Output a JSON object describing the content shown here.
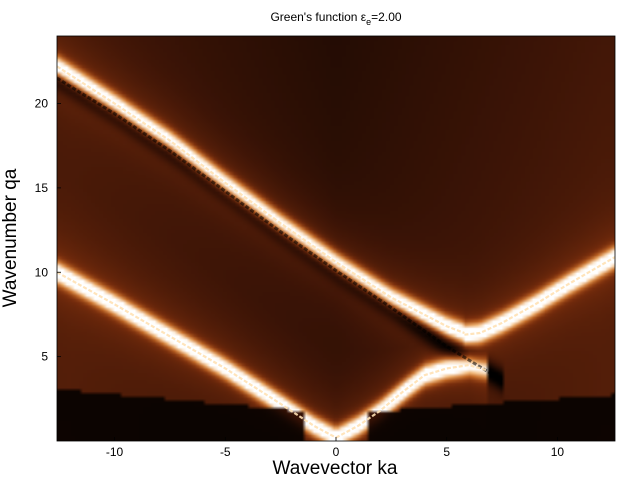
{
  "chart_data": {
    "type": "heatmap",
    "title": "Green's function ε",
    "title_subscript": "e",
    "title_value": "=2.00",
    "xlabel": "Wavevector ka",
    "ylabel": "Wavenumber qa",
    "xlim": [
      -12.6,
      12.6
    ],
    "ylim": [
      0,
      24
    ],
    "xticks": [
      -10,
      -5,
      0,
      5,
      10
    ],
    "xtick_labels": [
      "-10",
      "-5",
      "0",
      "5",
      "10"
    ],
    "yticks": [
      5,
      10,
      15,
      20
    ],
    "ytick_labels": [
      "5",
      "10",
      "15",
      "20"
    ],
    "grid": false,
    "legend": "none",
    "colormap": [
      "#000000",
      "#3c1406",
      "#7a2e0d",
      "#c56a26",
      "#f2b878",
      "#ffffff"
    ],
    "bright_curves": [
      {
        "x": [
          -12.6,
          -10,
          -7.5,
          -5,
          -2.5,
          -1,
          0
        ],
        "y": [
          10,
          8.1,
          6.2,
          4.3,
          2.2,
          0.9,
          0.2
        ]
      },
      {
        "x": [
          0,
          1,
          2,
          3,
          4,
          5,
          6,
          6.8
        ],
        "y": [
          0.2,
          0.9,
          1.8,
          2.9,
          3.9,
          4.3,
          4.5,
          4.2
        ]
      },
      {
        "x": [
          -12.6,
          -10,
          -7.5,
          -5,
          -2.5,
          0,
          2.5,
          5,
          5.8
        ],
        "y": [
          22.2,
          20,
          17.8,
          15.3,
          12.9,
          10.6,
          8.5,
          6.8,
          6.4
        ]
      },
      {
        "x": [
          5.8,
          6.5,
          7.5,
          9,
          10.5,
          12.6
        ],
        "y": [
          6.3,
          6.4,
          7.0,
          8.1,
          9.3,
          10.9
        ]
      }
    ],
    "dark_curves": [
      {
        "x": [
          -12.6,
          -10,
          -7.5,
          -5,
          -2.5,
          0,
          2.5,
          5,
          7.5
        ],
        "y": [
          21.5,
          19.4,
          17.2,
          14.8,
          12.4,
          10.1,
          7.9,
          5.6,
          3.6
        ]
      }
    ]
  }
}
